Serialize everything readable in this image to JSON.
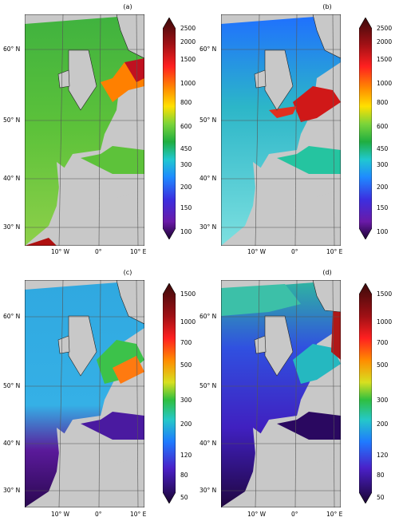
{
  "panels": [
    {
      "label": "(a)",
      "lat": [
        "60° N",
        "50° N",
        "40° N",
        "30° N"
      ],
      "lon": [
        "10° W",
        "0°",
        "10° E"
      ],
      "ticks": [
        "2500",
        "2000",
        "1500",
        "1000",
        "800",
        "600",
        "450",
        "300",
        "200",
        "150",
        "100"
      ]
    },
    {
      "label": "(b)",
      "lat": [
        "60° N",
        "50° N",
        "40° N",
        "30° N"
      ],
      "lon": [
        "10° W",
        "0°",
        "10° E"
      ],
      "ticks": [
        "2500",
        "2000",
        "1500",
        "1000",
        "800",
        "600",
        "450",
        "300",
        "200",
        "150",
        "100"
      ]
    },
    {
      "label": "(c)",
      "lat": [
        "60° N",
        "50° N",
        "40° N",
        "30° N"
      ],
      "lon": [
        "10° W",
        "0°",
        "10° E"
      ],
      "ticks": [
        "1500",
        "1000",
        "700",
        "500",
        "300",
        "200",
        "120",
        "80",
        "50"
      ]
    },
    {
      "label": "(d)",
      "lat": [
        "60° N",
        "50° N",
        "40° N",
        "30° N"
      ],
      "lon": [
        "10° W",
        "0°",
        "10° E"
      ],
      "ticks": [
        "1500",
        "1000",
        "700",
        "500",
        "300",
        "200",
        "120",
        "80",
        "50"
      ]
    }
  ],
  "colors": {
    "land": "#c8c8c8",
    "grid": "#555555",
    "coast": "#222222"
  }
}
